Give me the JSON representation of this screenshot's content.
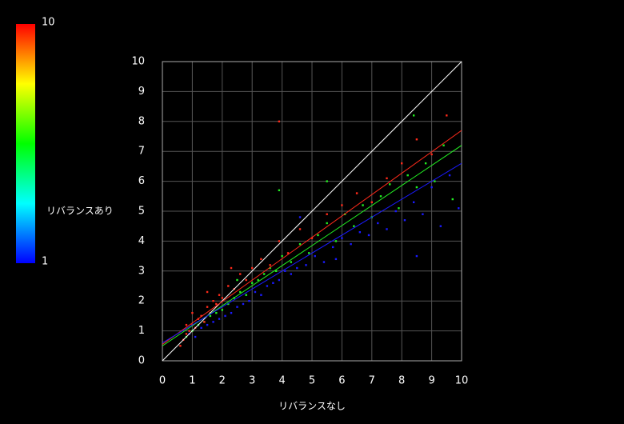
{
  "chart_data": {
    "type": "scatter",
    "xlabel": "リバランスなし",
    "xlim": [
      0,
      10
    ],
    "ylim": [
      0,
      10
    ],
    "xticks": [
      0,
      1,
      2,
      3,
      4,
      5,
      6,
      7,
      8,
      9,
      10
    ],
    "yticks": [
      0,
      1,
      2,
      3,
      4,
      5,
      6,
      7,
      8,
      9,
      10
    ],
    "grid": true,
    "colorbar": {
      "label": "リバランスあり",
      "ticks": [
        1,
        10
      ]
    },
    "series": [
      {
        "color": "#1a1aff",
        "x": [
          0.9,
          1.1,
          1.3,
          1.5,
          1.7,
          1.9,
          2.1,
          2.3,
          2.5,
          2.7,
          2.9,
          3.1,
          3.3,
          3.5,
          3.7,
          3.9,
          4.1,
          4.3,
          4.5,
          4.8,
          5.1,
          5.4,
          5.7,
          6.0,
          6.3,
          6.6,
          6.9,
          7.2,
          7.5,
          7.8,
          8.1,
          8.4,
          8.7,
          9.0,
          9.3,
          9.6,
          9.9,
          4.6,
          5.8,
          8.5
        ],
        "values": [
          0.9,
          0.8,
          1.1,
          1.2,
          1.3,
          1.4,
          1.5,
          1.6,
          1.8,
          1.9,
          2.0,
          2.3,
          2.2,
          2.5,
          2.6,
          2.7,
          3.0,
          2.9,
          3.1,
          3.2,
          3.5,
          3.3,
          3.8,
          4.1,
          3.9,
          4.3,
          4.2,
          4.6,
          4.4,
          5.0,
          4.7,
          5.3,
          4.9,
          5.8,
          4.5,
          6.2,
          5.1,
          4.8,
          3.4,
          3.5
        ]
      },
      {
        "color": "#22ee22",
        "x": [
          0.8,
          1.0,
          1.2,
          1.4,
          1.6,
          1.8,
          2.0,
          2.2,
          2.4,
          2.6,
          2.8,
          3.0,
          3.2,
          3.4,
          3.6,
          3.8,
          4.0,
          4.3,
          4.6,
          4.9,
          5.2,
          5.5,
          5.8,
          6.1,
          6.4,
          6.7,
          7.0,
          7.3,
          7.6,
          7.9,
          8.2,
          8.5,
          8.8,
          9.1,
          9.4,
          9.7,
          3.9,
          5.5,
          8.4,
          2.5
        ],
        "values": [
          0.8,
          1.0,
          1.2,
          1.3,
          1.5,
          1.6,
          1.7,
          1.9,
          2.1,
          2.3,
          2.2,
          2.6,
          2.7,
          2.9,
          3.1,
          3.0,
          3.5,
          3.3,
          3.9,
          3.6,
          4.2,
          4.6,
          4.0,
          4.9,
          4.5,
          5.2,
          4.8,
          5.5,
          5.9,
          5.1,
          6.2,
          5.8,
          6.6,
          6.0,
          7.2,
          5.4,
          5.7,
          6.0,
          8.2,
          2.7
        ]
      },
      {
        "color": "#ff2a1a",
        "x": [
          0.6,
          0.7,
          0.8,
          0.9,
          1.0,
          1.1,
          1.2,
          1.3,
          1.4,
          1.5,
          1.6,
          1.7,
          1.8,
          1.9,
          2.0,
          2.2,
          2.4,
          2.6,
          2.8,
          3.0,
          3.3,
          3.6,
          3.9,
          4.2,
          4.6,
          5.0,
          5.5,
          6.0,
          6.5,
          7.0,
          7.5,
          8.0,
          8.5,
          9.0,
          9.5,
          3.9,
          2.3,
          1.5,
          1.0,
          0.8
        ],
        "values": [
          0.5,
          0.7,
          0.9,
          1.0,
          1.2,
          1.1,
          1.4,
          1.5,
          1.3,
          1.8,
          1.6,
          2.0,
          1.9,
          2.2,
          2.1,
          2.5,
          2.4,
          2.9,
          2.7,
          3.1,
          3.4,
          3.2,
          4.0,
          3.6,
          4.4,
          4.1,
          4.9,
          5.2,
          5.6,
          5.3,
          6.1,
          6.6,
          7.4,
          6.9,
          8.2,
          8.0,
          3.1,
          2.3,
          1.6,
          1.2
        ]
      }
    ],
    "lines": [
      {
        "color": "#ffffff",
        "x": [
          0,
          10
        ],
        "values": [
          0,
          10
        ]
      },
      {
        "color": "#ff2a1a",
        "x": [
          0,
          10
        ],
        "values": [
          0.55,
          7.7
        ]
      },
      {
        "color": "#22ee22",
        "x": [
          0,
          10
        ],
        "values": [
          0.5,
          7.2
        ]
      },
      {
        "color": "#1a1aff",
        "x": [
          0,
          10
        ],
        "values": [
          0.6,
          6.6
        ]
      }
    ]
  }
}
